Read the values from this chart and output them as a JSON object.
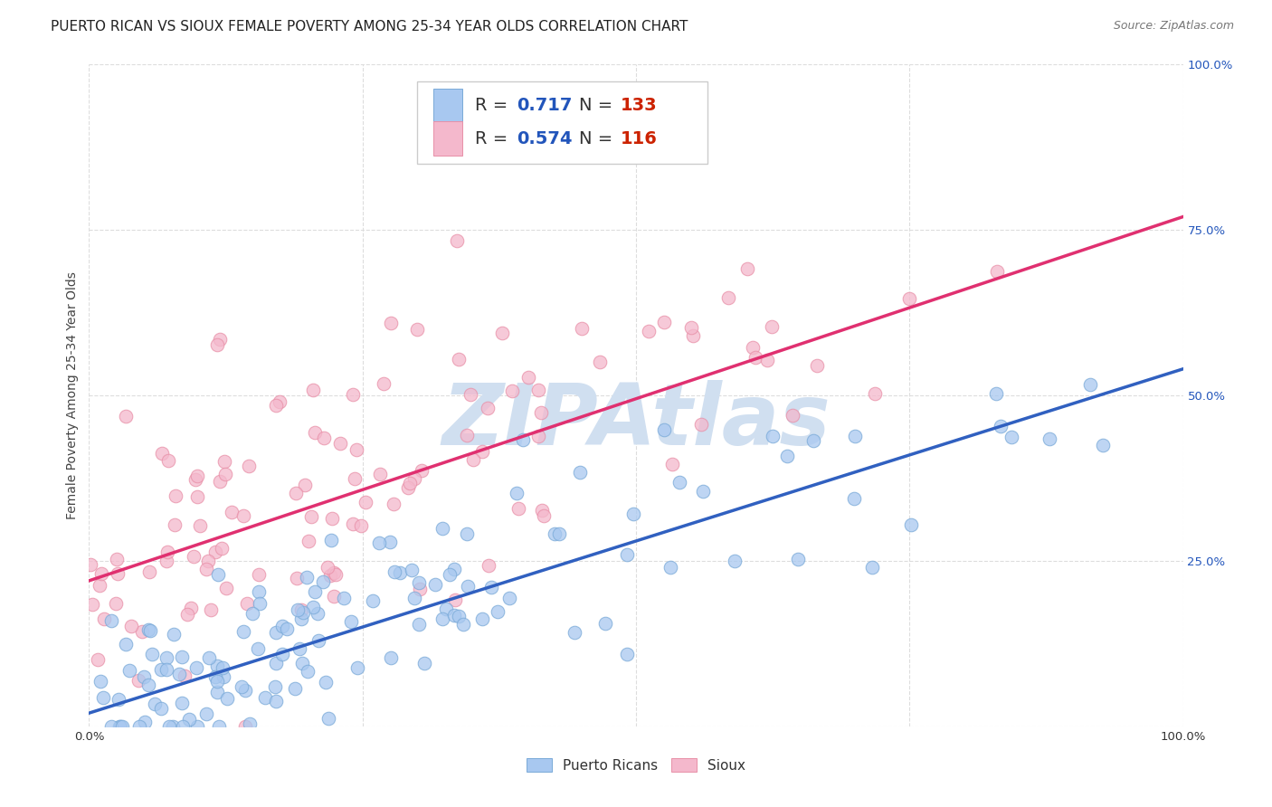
{
  "title": "PUERTO RICAN VS SIOUX FEMALE POVERTY AMONG 25-34 YEAR OLDS CORRELATION CHART",
  "source": "Source: ZipAtlas.com",
  "ylabel": "Female Poverty Among 25-34 Year Olds",
  "xlim": [
    0,
    1
  ],
  "ylim": [
    0,
    1
  ],
  "blue_color": "#a8c8f0",
  "blue_edge_color": "#7aaad8",
  "pink_color": "#f4b8cc",
  "pink_edge_color": "#e890a8",
  "blue_line_color": "#3060c0",
  "pink_line_color": "#e03070",
  "r_blue": 0.717,
  "n_blue": 133,
  "r_pink": 0.574,
  "n_pink": 116,
  "legend_r_color": "#2255bb",
  "legend_n_color": "#cc2200",
  "watermark": "ZIPAtlas",
  "watermark_color": "#d0dff0",
  "blue_intercept": 0.02,
  "blue_slope": 0.52,
  "pink_intercept": 0.22,
  "pink_slope": 0.55,
  "title_fontsize": 11,
  "axis_label_fontsize": 10,
  "tick_fontsize": 9.5,
  "legend_fontsize": 14,
  "source_fontsize": 9,
  "background_color": "#ffffff",
  "grid_color": "#dddddd",
  "yticklabel_color": "#2255bb"
}
